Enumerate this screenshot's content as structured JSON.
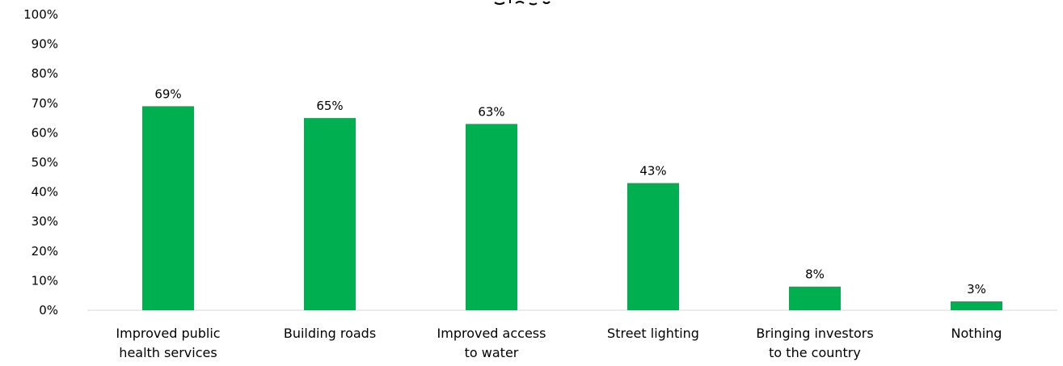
{
  "chart_data": {
    "type": "bar",
    "title": "",
    "xlabel": "",
    "ylabel": "",
    "categories": [
      [
        "Improved  public",
        "health services"
      ],
      [
        "Building roads"
      ],
      [
        "Improved access",
        "to water"
      ],
      [
        "Street lighting"
      ],
      [
        "Bringing investors",
        "to the country"
      ],
      [
        "Nothing"
      ]
    ],
    "values": [
      69,
      65,
      63,
      43,
      8,
      3
    ],
    "data_labels": [
      "69%",
      "65%",
      "63%",
      "43%",
      "8%",
      "3%"
    ],
    "ylim": [
      0,
      100
    ],
    "yticks": [
      0,
      10,
      20,
      30,
      40,
      50,
      60,
      70,
      80,
      90,
      100
    ],
    "ytick_labels": [
      "0%",
      "10%",
      "20%",
      "30%",
      "40%",
      "50%",
      "60%",
      "70%",
      "80%",
      "90%",
      "100%"
    ],
    "bar_color": "#00b050",
    "grid": false,
    "legend": "none"
  }
}
